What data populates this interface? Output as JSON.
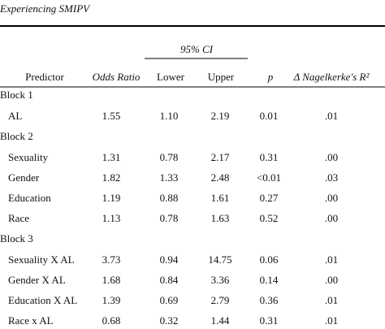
{
  "table": {
    "title": "Experiencing SMIPV",
    "ci_header": "95% CI",
    "columns": [
      "Predictor",
      "Odds Ratio",
      "Lower",
      "Upper",
      "p",
      "Δ Nagelkerke's R²"
    ],
    "groups": [
      {
        "label": "Block 1",
        "rows": [
          [
            "AL",
            "1.55",
            "1.10",
            "2.19",
            "0.01",
            ".01"
          ]
        ]
      },
      {
        "label": "Block 2",
        "rows": [
          [
            "Sexuality",
            "1.31",
            "0.78",
            "2.17",
            "0.31",
            ".00"
          ],
          [
            "Gender",
            "1.82",
            "1.33",
            "2.48",
            "<0.01",
            ".03"
          ],
          [
            "Education",
            "1.19",
            "0.88",
            "1.61",
            "0.27",
            ".00"
          ],
          [
            "Race",
            "1.13",
            "0.78",
            "1.63",
            "0.52",
            ".00"
          ]
        ]
      },
      {
        "label": "Block 3",
        "rows": [
          [
            "Sexuality X AL",
            "3.73",
            "0.94",
            "14.75",
            "0.06",
            ".01"
          ],
          [
            "Gender X AL",
            "1.68",
            "0.84",
            "3.36",
            "0.14",
            ".00"
          ],
          [
            "Education X AL",
            "1.39",
            "0.69",
            "2.79",
            "0.36",
            ".01"
          ],
          [
            "Race x AL",
            "0.68",
            "0.32",
            "1.44",
            "0.31",
            ".01"
          ]
        ]
      }
    ]
  }
}
